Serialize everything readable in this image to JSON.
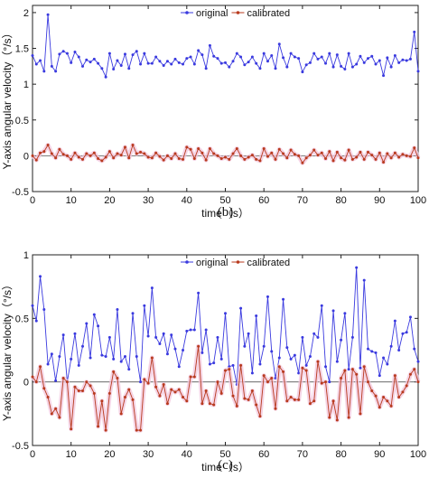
{
  "chart_data": [
    {
      "type": "line",
      "panel_label": "(b)",
      "xlabel": "time（s）",
      "ylabel": "Y-axis angular velocity（°/s）",
      "xlim": [
        0,
        100
      ],
      "ylim": [
        -0.5,
        2.1
      ],
      "xticks": [
        0,
        10,
        20,
        30,
        40,
        50,
        60,
        70,
        80,
        90,
        100
      ],
      "yticks": [
        -0.5,
        0,
        0.5,
        1,
        1.5,
        2
      ],
      "ytick_labels": [
        "-0.5",
        "0",
        "0.5",
        "1",
        "1.5",
        "2"
      ],
      "grid": false,
      "legend": "top-center",
      "zero_line": true,
      "series": [
        {
          "name": "original",
          "color": "#3a3adf",
          "values": [
            1.4,
            1.28,
            1.33,
            1.18,
            1.97,
            1.25,
            1.18,
            1.42,
            1.46,
            1.43,
            1.3,
            1.45,
            1.38,
            1.25,
            1.34,
            1.31,
            1.35,
            1.29,
            1.22,
            1.1,
            1.43,
            1.21,
            1.33,
            1.26,
            1.42,
            1.22,
            1.41,
            1.46,
            1.28,
            1.43,
            1.29,
            1.29,
            1.38,
            1.32,
            1.26,
            1.32,
            1.28,
            1.35,
            1.3,
            1.28,
            1.36,
            1.38,
            1.28,
            1.47,
            1.41,
            1.22,
            1.54,
            1.39,
            1.36,
            1.29,
            1.3,
            1.24,
            1.32,
            1.43,
            1.38,
            1.27,
            1.31,
            1.38,
            1.29,
            1.22,
            1.43,
            1.32,
            1.4,
            1.22,
            1.56,
            1.37,
            1.24,
            1.43,
            1.38,
            1.36,
            1.17,
            1.27,
            1.3,
            1.43,
            1.35,
            1.38,
            1.29,
            1.43,
            1.24,
            1.41,
            1.25,
            1.21,
            1.43,
            1.24,
            1.28,
            1.39,
            1.3,
            1.36,
            1.39,
            1.28,
            1.33,
            1.12,
            1.37,
            1.24,
            1.4,
            1.3,
            1.34,
            1.33,
            1.35,
            1.73,
            1.18
          ]
        },
        {
          "name": "calibrated",
          "color": "#b83a1e",
          "values": [
            0.0,
            -0.06,
            0.04,
            0.06,
            0.15,
            0.03,
            -0.03,
            0.09,
            0.02,
            0.0,
            -0.05,
            0.04,
            -0.02,
            -0.05,
            0.03,
            0.0,
            0.04,
            -0.04,
            -0.07,
            -0.02,
            0.06,
            -0.03,
            0.03,
            0.01,
            0.12,
            -0.03,
            0.15,
            0.03,
            0.05,
            0.03,
            -0.02,
            -0.03,
            0.04,
            -0.01,
            -0.06,
            0.0,
            -0.04,
            0.03,
            -0.04,
            -0.05,
            0.12,
            0.09,
            -0.04,
            0.1,
            0.04,
            -0.06,
            0.1,
            0.03,
            0.0,
            -0.04,
            -0.02,
            -0.05,
            0.03,
            0.1,
            0.0,
            -0.05,
            -0.02,
            0.01,
            -0.05,
            -0.07,
            0.1,
            -0.01,
            0.04,
            -0.05,
            0.09,
            0.03,
            -0.03,
            0.08,
            0.02,
            0.0,
            -0.1,
            -0.03,
            0.01,
            0.08,
            0.01,
            0.04,
            -0.04,
            0.06,
            -0.07,
            0.05,
            -0.03,
            -0.06,
            0.08,
            -0.05,
            -0.02,
            0.05,
            -0.05,
            0.05,
            0.01,
            -0.05,
            0.04,
            -0.09,
            0.03,
            -0.03,
            0.04,
            -0.02,
            0.02,
            0.0,
            -0.01,
            0.11,
            -0.03
          ]
        }
      ]
    },
    {
      "type": "line",
      "panel_label": "(c)",
      "xlabel": "time（s）",
      "ylabel": "Y-axis angular velocity（°/s）",
      "xlim": [
        0,
        100
      ],
      "ylim": [
        -0.5,
        1
      ],
      "xticks": [
        0,
        10,
        20,
        30,
        40,
        50,
        60,
        70,
        80,
        90,
        100
      ],
      "yticks": [
        -0.5,
        0,
        0.5,
        1
      ],
      "ytick_labels": [
        "-0.5",
        "0",
        "0.5",
        "1"
      ],
      "grid": false,
      "legend": "top-center",
      "zero_line": true,
      "series": [
        {
          "name": "original",
          "color": "#3a3adf",
          "values": [
            0.6,
            0.48,
            0.83,
            0.57,
            0.14,
            0.22,
            0.01,
            0.2,
            0.37,
            0.0,
            0.18,
            0.38,
            0.13,
            0.28,
            0.46,
            0.19,
            0.53,
            0.44,
            0.21,
            0.2,
            0.35,
            0.18,
            0.57,
            0.16,
            0.2,
            0.1,
            0.54,
            0.2,
            0.0,
            0.6,
            0.36,
            0.74,
            0.35,
            0.3,
            0.38,
            0.22,
            0.37,
            0.26,
            0.12,
            0.25,
            0.4,
            0.41,
            0.41,
            0.7,
            0.23,
            0.41,
            0.14,
            0.15,
            0.35,
            0.18,
            0.54,
            0.12,
            0.13,
            -0.02,
            0.58,
            0.28,
            0.38,
            0.07,
            0.52,
            0.14,
            0.28,
            0.67,
            0.24,
            0.03,
            0.19,
            0.65,
            0.27,
            0.18,
            0.21,
            0.07,
            0.35,
            0.13,
            0.2,
            0.38,
            0.35,
            0.6,
            0.12,
            0.0,
            0.56,
            0.16,
            0.33,
            0.54,
            0.1,
            0.35,
            0.9,
            0.11,
            0.8,
            0.26,
            0.24,
            0.23,
            0.05,
            0.19,
            0.14,
            0.28,
            0.48,
            0.25,
            0.38,
            0.39,
            0.51,
            0.26,
            0.16
          ]
        },
        {
          "name": "calibrated",
          "color": "#b83a1e",
          "values": [
            0.04,
            0.0,
            0.12,
            -0.05,
            -0.12,
            -0.25,
            -0.21,
            -0.28,
            0.03,
            0.0,
            -0.37,
            -0.04,
            -0.07,
            -0.07,
            0.0,
            -0.03,
            -0.09,
            -0.35,
            -0.15,
            -0.38,
            -0.09,
            0.08,
            0.03,
            -0.25,
            -0.12,
            -0.06,
            -0.14,
            -0.38,
            -0.38,
            0.02,
            -0.01,
            0.19,
            -0.04,
            -0.11,
            -0.02,
            -0.17,
            -0.06,
            -0.08,
            -0.06,
            -0.12,
            -0.15,
            0.04,
            0.04,
            0.28,
            -0.17,
            -0.07,
            -0.17,
            -0.18,
            0.0,
            -0.09,
            0.09,
            0.1,
            -0.11,
            -0.19,
            0.13,
            -0.13,
            -0.14,
            -0.07,
            -0.18,
            -0.27,
            0.05,
            0.0,
            0.03,
            -0.21,
            0.12,
            0.08,
            -0.15,
            -0.12,
            -0.14,
            -0.14,
            0.11,
            0.09,
            -0.17,
            -0.15,
            0.16,
            -0.01,
            0.0,
            -0.28,
            -0.15,
            -0.3,
            0.03,
            0.09,
            -0.28,
            0.1,
            0.06,
            -0.25,
            0.12,
            0.0,
            -0.07,
            -0.11,
            -0.2,
            -0.12,
            -0.15,
            -0.19,
            0.05,
            -0.12,
            -0.08,
            -0.03,
            0.06,
            0.1,
            0.0
          ]
        }
      ]
    }
  ]
}
